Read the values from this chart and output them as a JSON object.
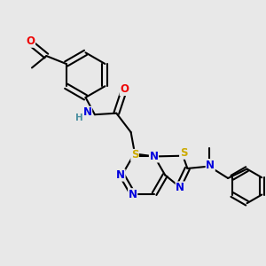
{
  "bg_color": "#e8e8e8",
  "atom_colors": {
    "C": "#000000",
    "N": "#0000dd",
    "O": "#ee0000",
    "S": "#ccaa00",
    "H": "#4a8fa0"
  },
  "bond_color": "#000000",
  "bond_width": 1.5,
  "figsize": [
    3.0,
    3.0
  ],
  "dpi": 100,
  "xlim": [
    0,
    10
  ],
  "ylim": [
    0,
    10
  ]
}
